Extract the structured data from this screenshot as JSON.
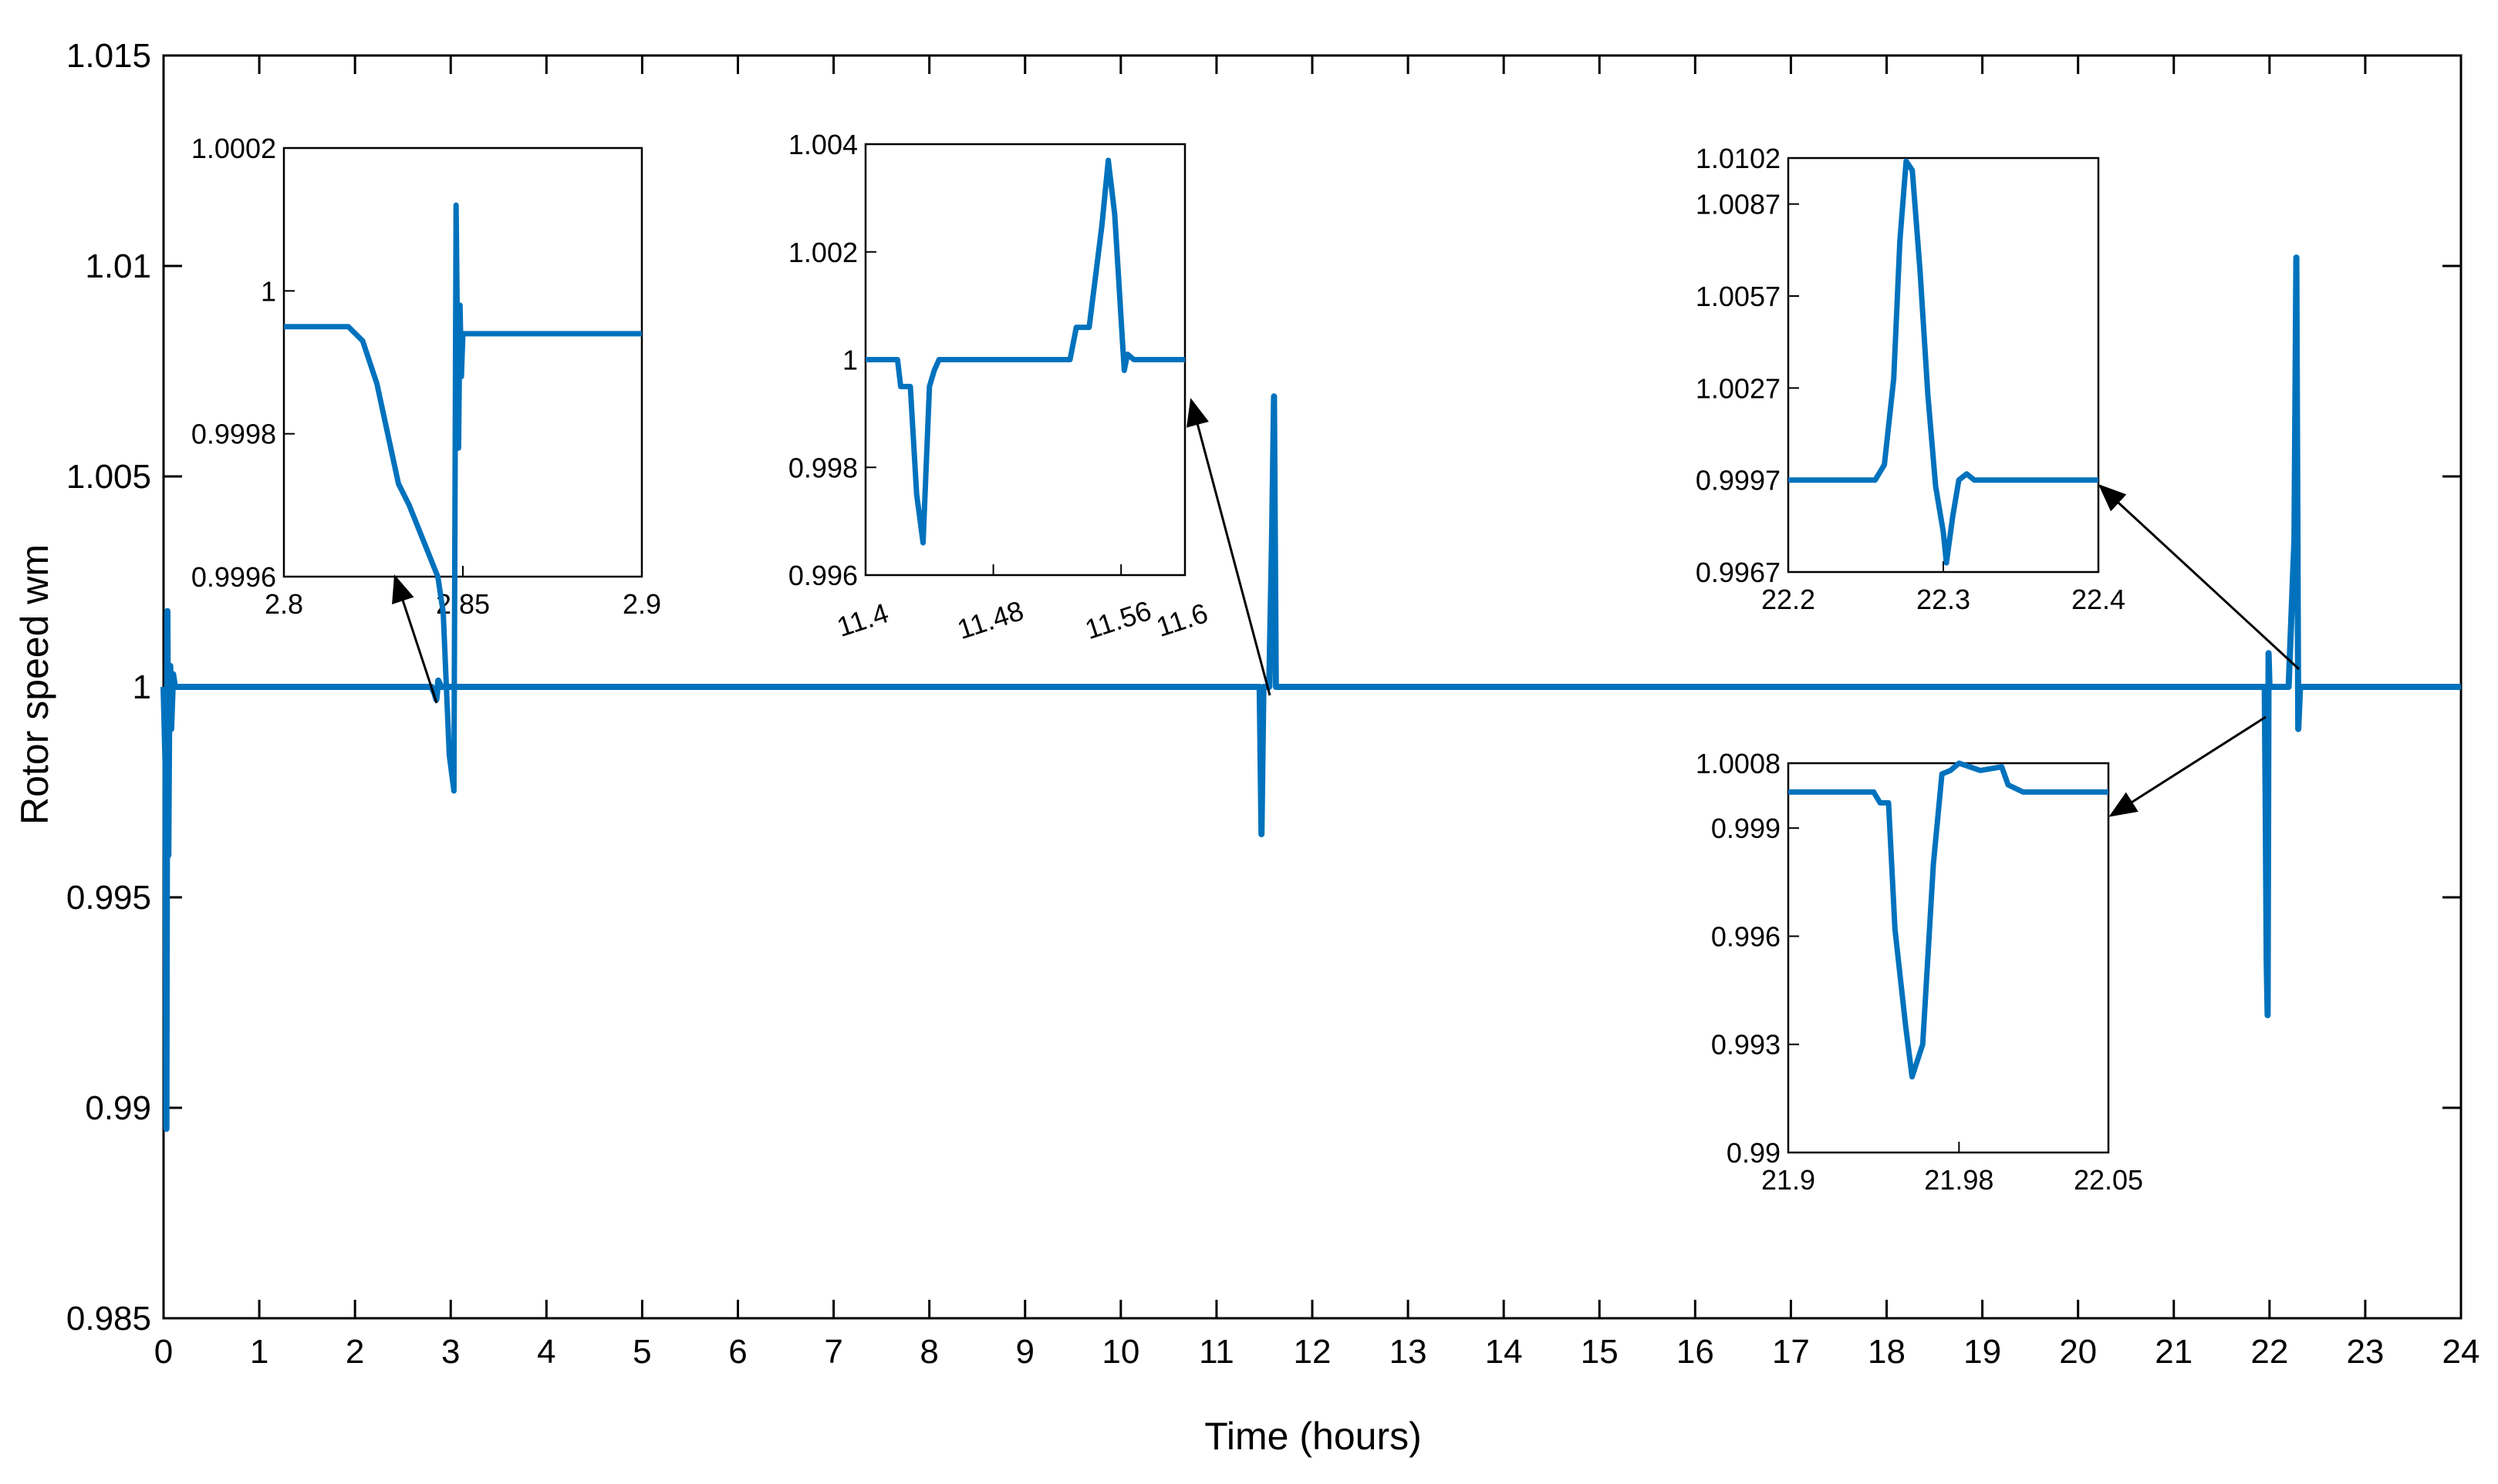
{
  "chart_data": {
    "type": "line",
    "title": "",
    "xlabel": "Time (hours)",
    "ylabel": "Rotor speed  wm",
    "xlim": [
      0,
      24
    ],
    "ylim": [
      0.985,
      1.015
    ],
    "x_ticks": [
      "0",
      "1",
      "2",
      "3",
      "4",
      "5",
      "6",
      "7",
      "8",
      "9",
      "10",
      "11",
      "12",
      "13",
      "14",
      "15",
      "16",
      "17",
      "18",
      "19",
      "20",
      "21",
      "22",
      "23",
      "24"
    ],
    "y_ticks": [
      "0.985",
      "0.99",
      "0.995",
      "1",
      "1.005",
      "1.01",
      "1.015"
    ],
    "colors": {
      "series": "#0072BD",
      "axes": "#000000",
      "arrow": "#000000"
    },
    "grid": false,
    "series": [
      {
        "x": [
          0,
          0.02,
          0.03,
          0.04,
          0.05,
          0.06,
          0.07,
          0.08,
          0.1,
          0.12,
          0.2,
          2.8,
          2.83,
          2.85,
          2.87,
          2.9,
          11.45,
          11.47,
          11.49,
          11.5,
          11.53,
          11.55,
          11.58,
          11.6,
          11.62,
          11.65,
          11.7,
          21.95,
          21.96,
          21.97,
          21.98,
          21.99,
          22.0,
          22.02,
          22.2,
          22.26,
          22.28,
          22.3,
          22.32,
          22.34,
          22.4,
          24
        ],
        "values": [
          1.0,
          0.9982,
          0.9895,
          1.0018,
          0.996,
          0.9995,
          1.0005,
          0.999,
          1.0003,
          1.0,
          1.0,
          1.0,
          0.99985,
          0.9997,
          1.00015,
          1.0,
          1.0,
          0.9965,
          1.0,
          1.0,
          1.0,
          1.0,
          1.0036,
          1.0069,
          1.0,
          1.0,
          1.0,
          1.0,
          0.997,
          0.9935,
          0.9922,
          1.0008,
          1.0,
          1.0,
          1.0,
          1.0035,
          1.0102,
          0.999,
          1.0,
          1.0,
          1.0,
          1.0
        ]
      }
    ],
    "insets": [
      {
        "xlim": [
          2.8,
          2.9
        ],
        "ylim": [
          0.9996,
          1.0002
        ],
        "x_ticks": [
          "2.8",
          "2.85",
          "2.9"
        ],
        "y_ticks": [
          "0.9996",
          "0.9998",
          "1",
          "1.0002"
        ],
        "x_ticks_rotated": false,
        "target": {
          "x": 2.85,
          "y": 1.0
        },
        "series": {
          "x": [
            2.8,
            2.818,
            2.822,
            2.826,
            2.832,
            2.835,
            2.843,
            2.8445,
            2.8462,
            2.8475,
            2.8481,
            2.8488,
            2.8492,
            2.8496,
            2.85,
            2.854,
            2.865,
            2.88,
            2.9
          ],
          "values": [
            0.99995,
            0.99995,
            0.99993,
            0.99987,
            0.99973,
            0.9997,
            0.9996,
            0.99955,
            0.99935,
            0.9993,
            1.00012,
            0.99978,
            0.99998,
            0.99988,
            0.99994,
            0.99994,
            0.99994,
            0.99994,
            0.99994
          ]
        }
      },
      {
        "xlim": [
          11.4,
          11.6
        ],
        "ylim": [
          0.996,
          1.004
        ],
        "x_ticks": [
          "11.4",
          "11.48",
          "11.56",
          "11.6"
        ],
        "y_ticks": [
          "0.996",
          "0.998",
          "1",
          "1.002",
          "1.004"
        ],
        "x_ticks_rotated": true,
        "target": {
          "x": 11.55,
          "y": 1.0
        },
        "series": {
          "x": [
            11.4,
            11.42,
            11.422,
            11.428,
            11.432,
            11.436,
            11.44,
            11.443,
            11.446,
            11.454,
            11.46,
            11.5,
            11.528,
            11.532,
            11.54,
            11.548,
            11.552,
            11.556,
            11.562,
            11.564,
            11.568,
            11.6
          ],
          "values": [
            1.0,
            1.0,
            0.9995,
            0.9995,
            0.9975,
            0.9966,
            0.9995,
            0.9998,
            1.0,
            1.0,
            1.0,
            1.0,
            1.0,
            1.0006,
            1.0006,
            1.0025,
            1.0037,
            1.0027,
            0.9998,
            1.0001,
            1.0,
            1.0
          ]
        }
      },
      {
        "xlim": [
          22.2,
          22.4
        ],
        "ylim": [
          0.9967,
          1.0102
        ],
        "x_ticks": [
          "22.2",
          "22.3",
          "22.4"
        ],
        "y_ticks": [
          "0.9967",
          "0.9997",
          "1.0027",
          "1.0057",
          "1.0087",
          "1.0102"
        ],
        "x_ticks_rotated": false,
        "target": {
          "x": 22.4,
          "y": 1.0
        },
        "series": {
          "x": [
            22.2,
            22.25,
            22.256,
            22.262,
            22.268,
            22.272,
            22.276,
            22.28,
            22.285,
            22.29,
            22.295,
            22.3,
            22.302,
            22.306,
            22.31,
            22.315,
            22.32,
            22.4
          ],
          "values": [
            0.9997,
            0.9997,
            0.9997,
            1.0002,
            1.003,
            1.0075,
            1.0101,
            1.0098,
            1.0065,
            1.0025,
            0.9995,
            0.998,
            0.997,
            0.9985,
            0.9997,
            0.9999,
            0.9997,
            0.9997
          ]
        }
      },
      {
        "xlim": [
          21.9,
          22.05
        ],
        "ylim": [
          0.99,
          1.0008
        ],
        "x_ticks": [
          "21.9",
          "21.98",
          "22.05"
        ],
        "y_ticks": [
          "0.99",
          "0.993",
          "0.996",
          "0.999",
          "1.0008"
        ],
        "x_ticks_rotated": false,
        "target": {
          "x": 21.95,
          "y": 0.999
        },
        "series": {
          "x": [
            21.9,
            21.94,
            21.943,
            21.947,
            21.95,
            21.955,
            21.958,
            21.963,
            21.968,
            21.972,
            21.976,
            21.98,
            21.99,
            22.0,
            22.003,
            22.01,
            22.05
          ],
          "values": [
            1.0,
            1.0,
            0.9997,
            0.9997,
            0.9962,
            0.9935,
            0.9921,
            0.993,
            0.998,
            1.0005,
            1.0006,
            1.0008,
            1.0006,
            1.0007,
            1.0002,
            1.0,
            1.0
          ]
        }
      }
    ]
  }
}
